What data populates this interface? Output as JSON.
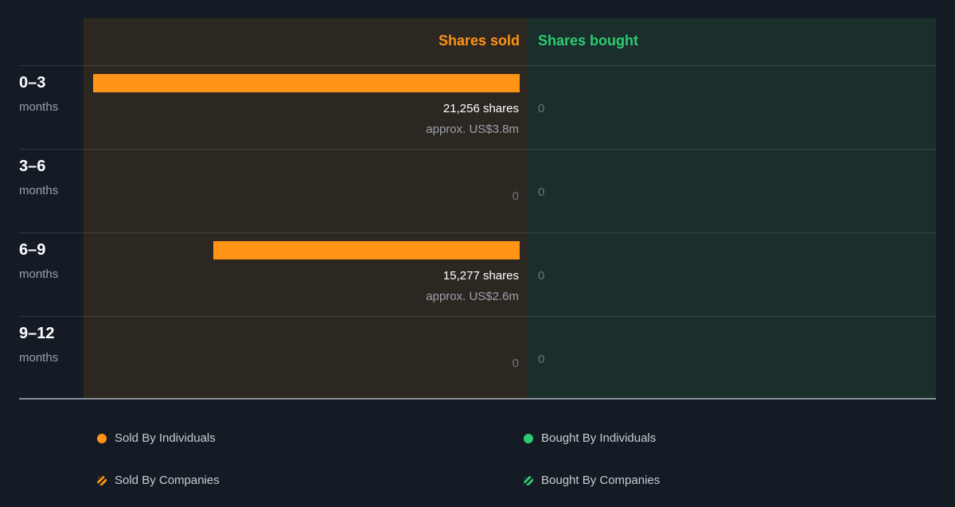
{
  "colors": {
    "background": "#151b24",
    "sold_panel": "#2d2721",
    "bought_panel": "#1a2e2c",
    "sold": "#ff9416",
    "bought": "#2ecc71"
  },
  "headers": {
    "sold": "Shares sold",
    "bought": "Shares bought"
  },
  "chart_data": {
    "type": "bar",
    "orientation": "horizontal-diverging",
    "categories": [
      {
        "label": "0–3",
        "unit": "months"
      },
      {
        "label": "3–6",
        "unit": "months"
      },
      {
        "label": "6–9",
        "unit": "months"
      },
      {
        "label": "9–12",
        "unit": "months"
      }
    ],
    "series": [
      {
        "name": "Shares sold",
        "values": [
          21256,
          0,
          15277,
          0
        ],
        "value_labels": [
          "21,256 shares",
          "0",
          "15,277 shares",
          "0"
        ],
        "approx_labels": [
          "approx. US$3.8m",
          "",
          "approx. US$2.6m",
          ""
        ]
      },
      {
        "name": "Shares bought",
        "values": [
          0,
          0,
          0,
          0
        ],
        "value_labels": [
          "0",
          "0",
          "0",
          "0"
        ]
      }
    ],
    "xlim": [
      0,
      21256
    ]
  },
  "legend": {
    "sold_individuals": "Sold By Individuals",
    "sold_companies": "Sold By Companies",
    "bought_individuals": "Bought By Individuals",
    "bought_companies": "Bought By Companies"
  }
}
